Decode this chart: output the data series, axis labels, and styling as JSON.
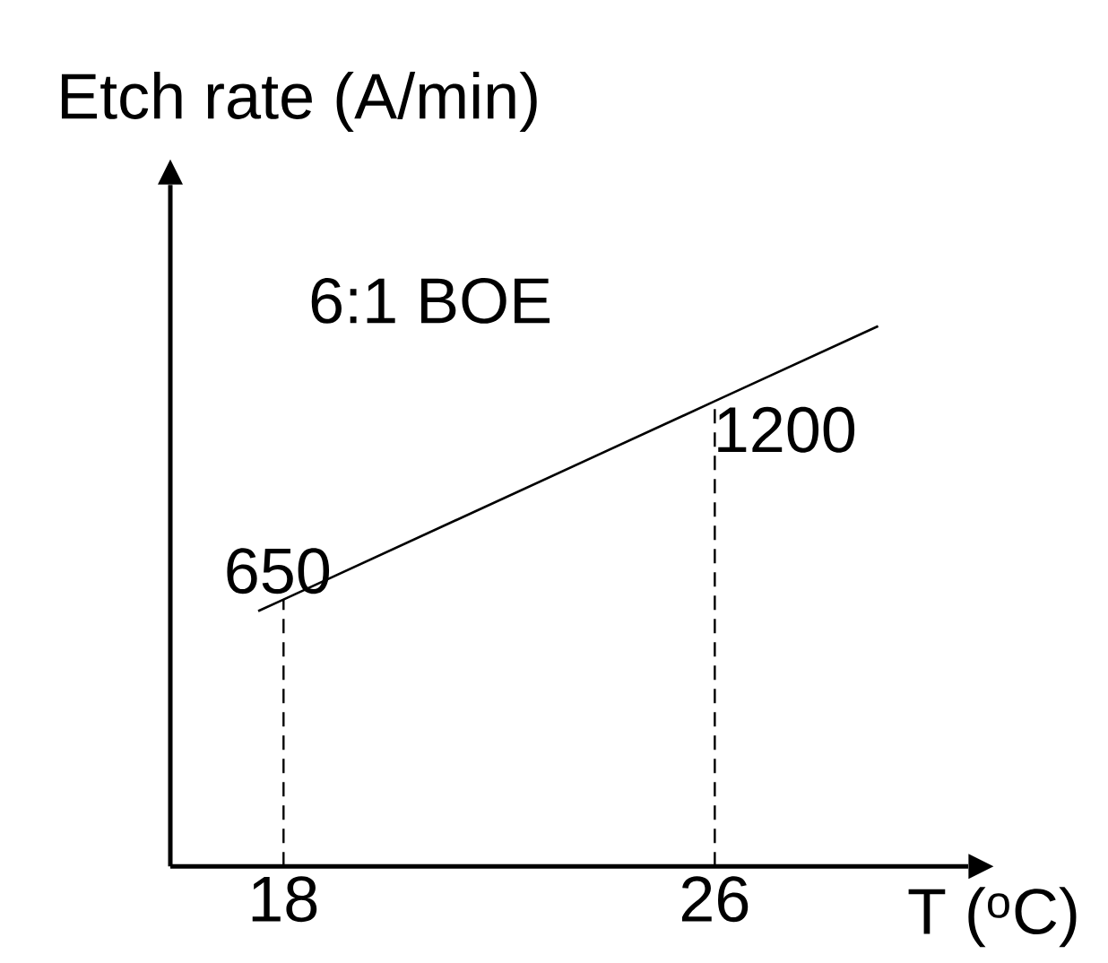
{
  "chart_data": {
    "type": "line",
    "xlabel": "T ($^{o}$C)",
    "ylabel": "Etch rate (A/min)",
    "annotations": [
      "6:1 BOE"
    ],
    "x": [
      17.53,
      18,
      26,
      29.03
    ],
    "values": [
      618,
      650,
      1200,
      1408
    ],
    "value_labels": [
      null,
      "650",
      "1200",
      null
    ],
    "color": "#000000",
    "marker": "none",
    "line_style": "solid",
    "xlim": [
      15.9,
      30.7
    ],
    "ylim": [
      -90,
      1800
    ],
    "xticks": [
      18,
      26
    ],
    "tick_labels": "x",
    "ref_lines": [
      {
        "axis": "x",
        "value": 18,
        "line_style": "dashed"
      },
      {
        "axis": "x",
        "value": 26,
        "line_style": "dashed"
      }
    ]
  }
}
